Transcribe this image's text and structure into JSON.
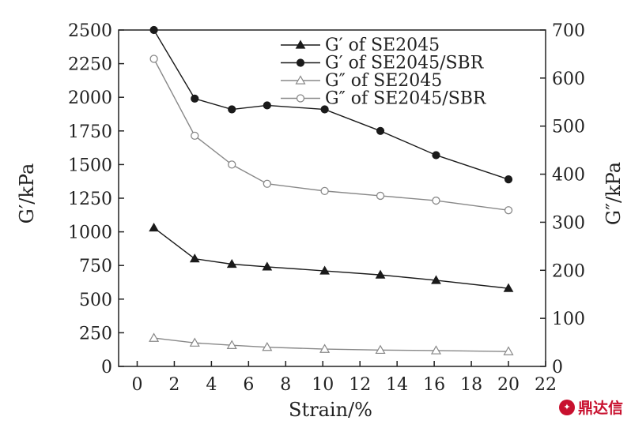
{
  "chart_data": {
    "type": "line",
    "xlabel": "Strain/%",
    "ylabel_left": "G′/kPa",
    "ylabel_right": "G″/kPa",
    "xlim": [
      -1,
      22
    ],
    "ylim_left": [
      0,
      2500
    ],
    "ylim_right": [
      0,
      700
    ],
    "x_ticks": [
      0,
      2,
      4,
      6,
      8,
      10,
      12,
      14,
      16,
      18,
      20,
      22
    ],
    "y_left_ticks": [
      0,
      250,
      500,
      750,
      1000,
      1250,
      1500,
      1750,
      2000,
      2250,
      2500
    ],
    "y_right_ticks": [
      0,
      100,
      200,
      300,
      400,
      500,
      600,
      700
    ],
    "grid": false,
    "legend_position": "top-right",
    "series": [
      {
        "name": "G′ of SE2045",
        "axis": "left",
        "marker": "filled-triangle",
        "color": "#1a1a1a",
        "x": [
          0.9,
          3.1,
          5.1,
          7.0,
          10.1,
          13.1,
          16.1,
          20.0
        ],
        "y": [
          1030,
          800,
          760,
          740,
          710,
          680,
          640,
          580
        ]
      },
      {
        "name": "G′ of SE2045/SBR",
        "axis": "left",
        "marker": "filled-circle",
        "color": "#1a1a1a",
        "x": [
          0.9,
          3.1,
          5.1,
          7.0,
          10.1,
          13.1,
          16.1,
          20.0
        ],
        "y": [
          2500,
          1990,
          1910,
          1940,
          1910,
          1750,
          1570,
          1390
        ]
      },
      {
        "name": "G″ of SE2045",
        "axis": "right",
        "marker": "open-triangle",
        "color": "#888888",
        "x": [
          0.9,
          3.1,
          5.1,
          7.0,
          10.1,
          13.1,
          16.1,
          20.0
        ],
        "y": [
          59,
          49,
          44,
          40,
          36,
          34,
          33,
          31
        ]
      },
      {
        "name": "G″ of SE2045/SBR",
        "axis": "right",
        "marker": "open-circle",
        "color": "#888888",
        "x": [
          0.9,
          3.1,
          5.1,
          7.0,
          10.1,
          13.1,
          16.1,
          20.0
        ],
        "y": [
          640,
          480,
          420,
          380,
          365,
          355,
          345,
          325
        ]
      }
    ]
  },
  "watermark": {
    "icon": "logo-badge-icon",
    "text": "鼎达信"
  }
}
